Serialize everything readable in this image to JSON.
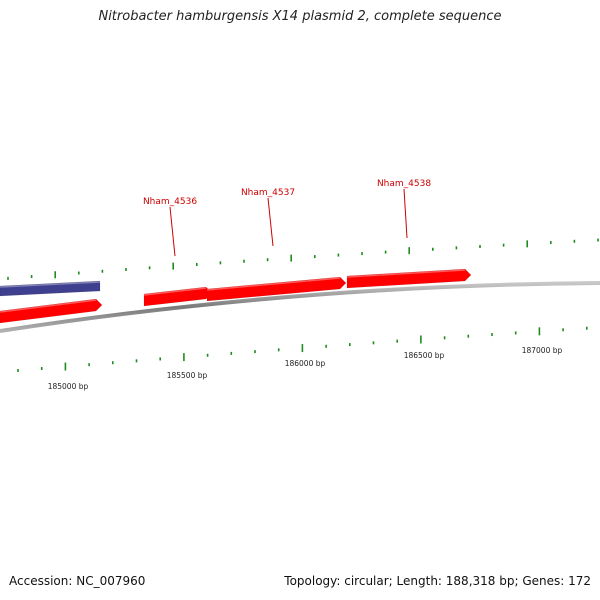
{
  "title": "Nitrobacter hamburgensis X14 plasmid 2, complete sequence",
  "footer": {
    "accession": "Accession: NC_007960",
    "summary": "Topology: circular; Length: 188,318 bp; Genes: 172"
  },
  "colors": {
    "forward_gene": "#ff0000",
    "reverse_gene": "#3f3f8f",
    "backbone": "#888888",
    "tick": "#1f8c1f",
    "gene_label": "#cc0000"
  },
  "coordinate_labels": [
    "185000 bp",
    "185500 bp",
    "186000 bp",
    "186500 bp",
    "187000 bp"
  ],
  "genes": [
    {
      "label": "Nham_4536",
      "strand": "forward",
      "labeled": true
    },
    {
      "label": "Nham_4537",
      "strand": "forward",
      "labeled": true
    },
    {
      "label": "Nham_4538",
      "strand": "forward",
      "labeled": true
    },
    {
      "label": "",
      "strand": "forward",
      "labeled": false
    },
    {
      "label": "",
      "strand": "reverse",
      "labeled": false
    }
  ]
}
